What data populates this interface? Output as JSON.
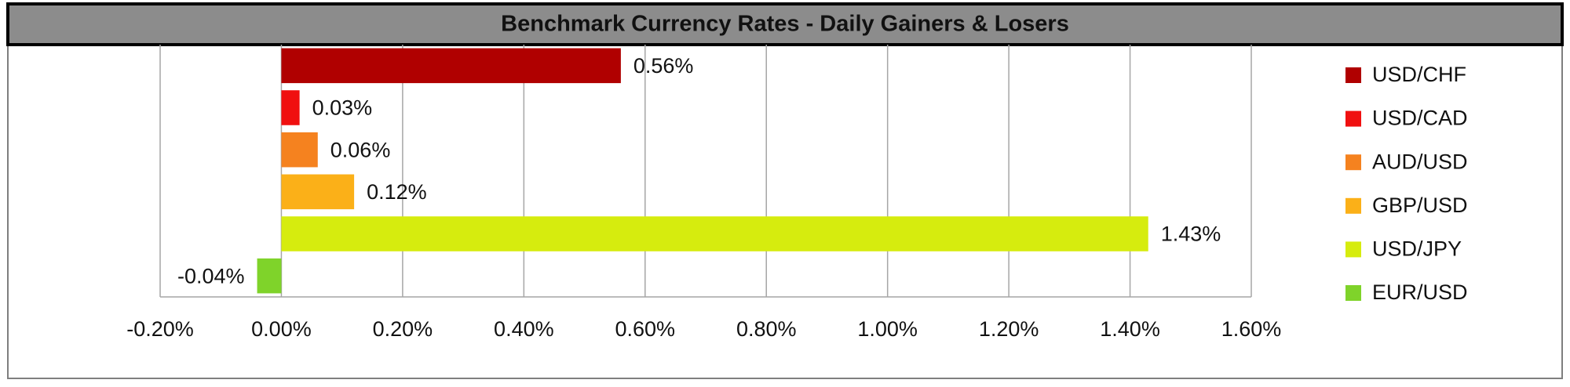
{
  "chart_data": {
    "type": "bar",
    "orientation": "horizontal",
    "title": "Benchmark Currency Rates - Daily Gainers & Losers",
    "categories": [
      "USD/CHF",
      "USD/CAD",
      "AUD/USD",
      "GBP/USD",
      "USD/JPY",
      "EUR/USD"
    ],
    "values": [
      0.56,
      0.03,
      0.06,
      0.12,
      1.43,
      -0.04
    ],
    "value_labels": [
      "0.56%",
      "0.03%",
      "0.06%",
      "0.12%",
      "1.43%",
      "-0.04%"
    ],
    "colors": [
      "#b00000",
      "#f01010",
      "#f5821f",
      "#fbb018",
      "#d6ec0e",
      "#7fd32a"
    ],
    "xlim": [
      -0.2,
      1.6
    ],
    "xticks": [
      {
        "value": -0.2,
        "label": "-0.20%"
      },
      {
        "value": 0,
        "label": "0.00%"
      },
      {
        "value": 0.2,
        "label": "0.20%"
      },
      {
        "value": 0.4,
        "label": "0.40%"
      },
      {
        "value": 0.6,
        "label": "0.60%"
      },
      {
        "value": 0.8,
        "label": "0.80%"
      },
      {
        "value": 1,
        "label": "1.00%"
      },
      {
        "value": 1.2,
        "label": "1.20%"
      },
      {
        "value": 1.4,
        "label": "1.40%"
      },
      {
        "value": 1.6,
        "label": "1.60%"
      }
    ],
    "grid": true,
    "legend": "right"
  }
}
